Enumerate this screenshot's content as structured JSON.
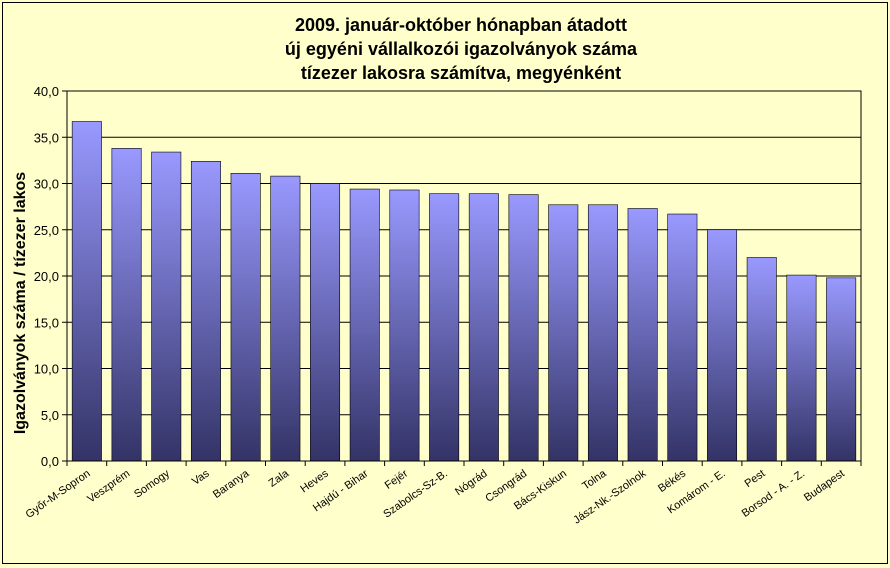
{
  "chart_data": {
    "type": "bar",
    "title": [
      "2009. január-október hónapban átadott",
      "új egyéni vállalkozói  igazolványok száma",
      "tízezer lakosra számítva, megyénként"
    ],
    "xlabel": "",
    "ylabel": "Igazolványok száma / tízezer lakos",
    "ylim": [
      0,
      40
    ],
    "yticks": [
      "0,0",
      "5,0",
      "10,0",
      "15,0",
      "20,0",
      "25,0",
      "30,0",
      "35,0",
      "40,0"
    ],
    "grid": true,
    "legend": "none",
    "categories": [
      "Győr-M-Sopron",
      "Veszprém",
      "Somogy",
      "Vas",
      "Baranya",
      "Zala",
      "Heves",
      "Hajdú - Bihar",
      "Fejér",
      "Szabolcs-Sz-B.",
      "Nógrád",
      "Csongrád",
      "Bács-Kiskun",
      "Tolna",
      "Jász-Nk.-Szolnok",
      "Békés",
      "Komárom - E.",
      "Pest",
      "Borsod - A. - Z.",
      "Budapest"
    ],
    "values": [
      36.7,
      33.8,
      33.4,
      32.4,
      31.1,
      30.8,
      30.0,
      29.4,
      29.3,
      28.9,
      28.9,
      28.8,
      27.7,
      27.7,
      27.3,
      26.7,
      25.0,
      22.0,
      20.1,
      19.8
    ],
    "colors": {
      "bar_top": "#9999ff",
      "bar_bottom": "#333366",
      "background": "#ffffcc",
      "plot_background": "#ffffcc"
    }
  }
}
